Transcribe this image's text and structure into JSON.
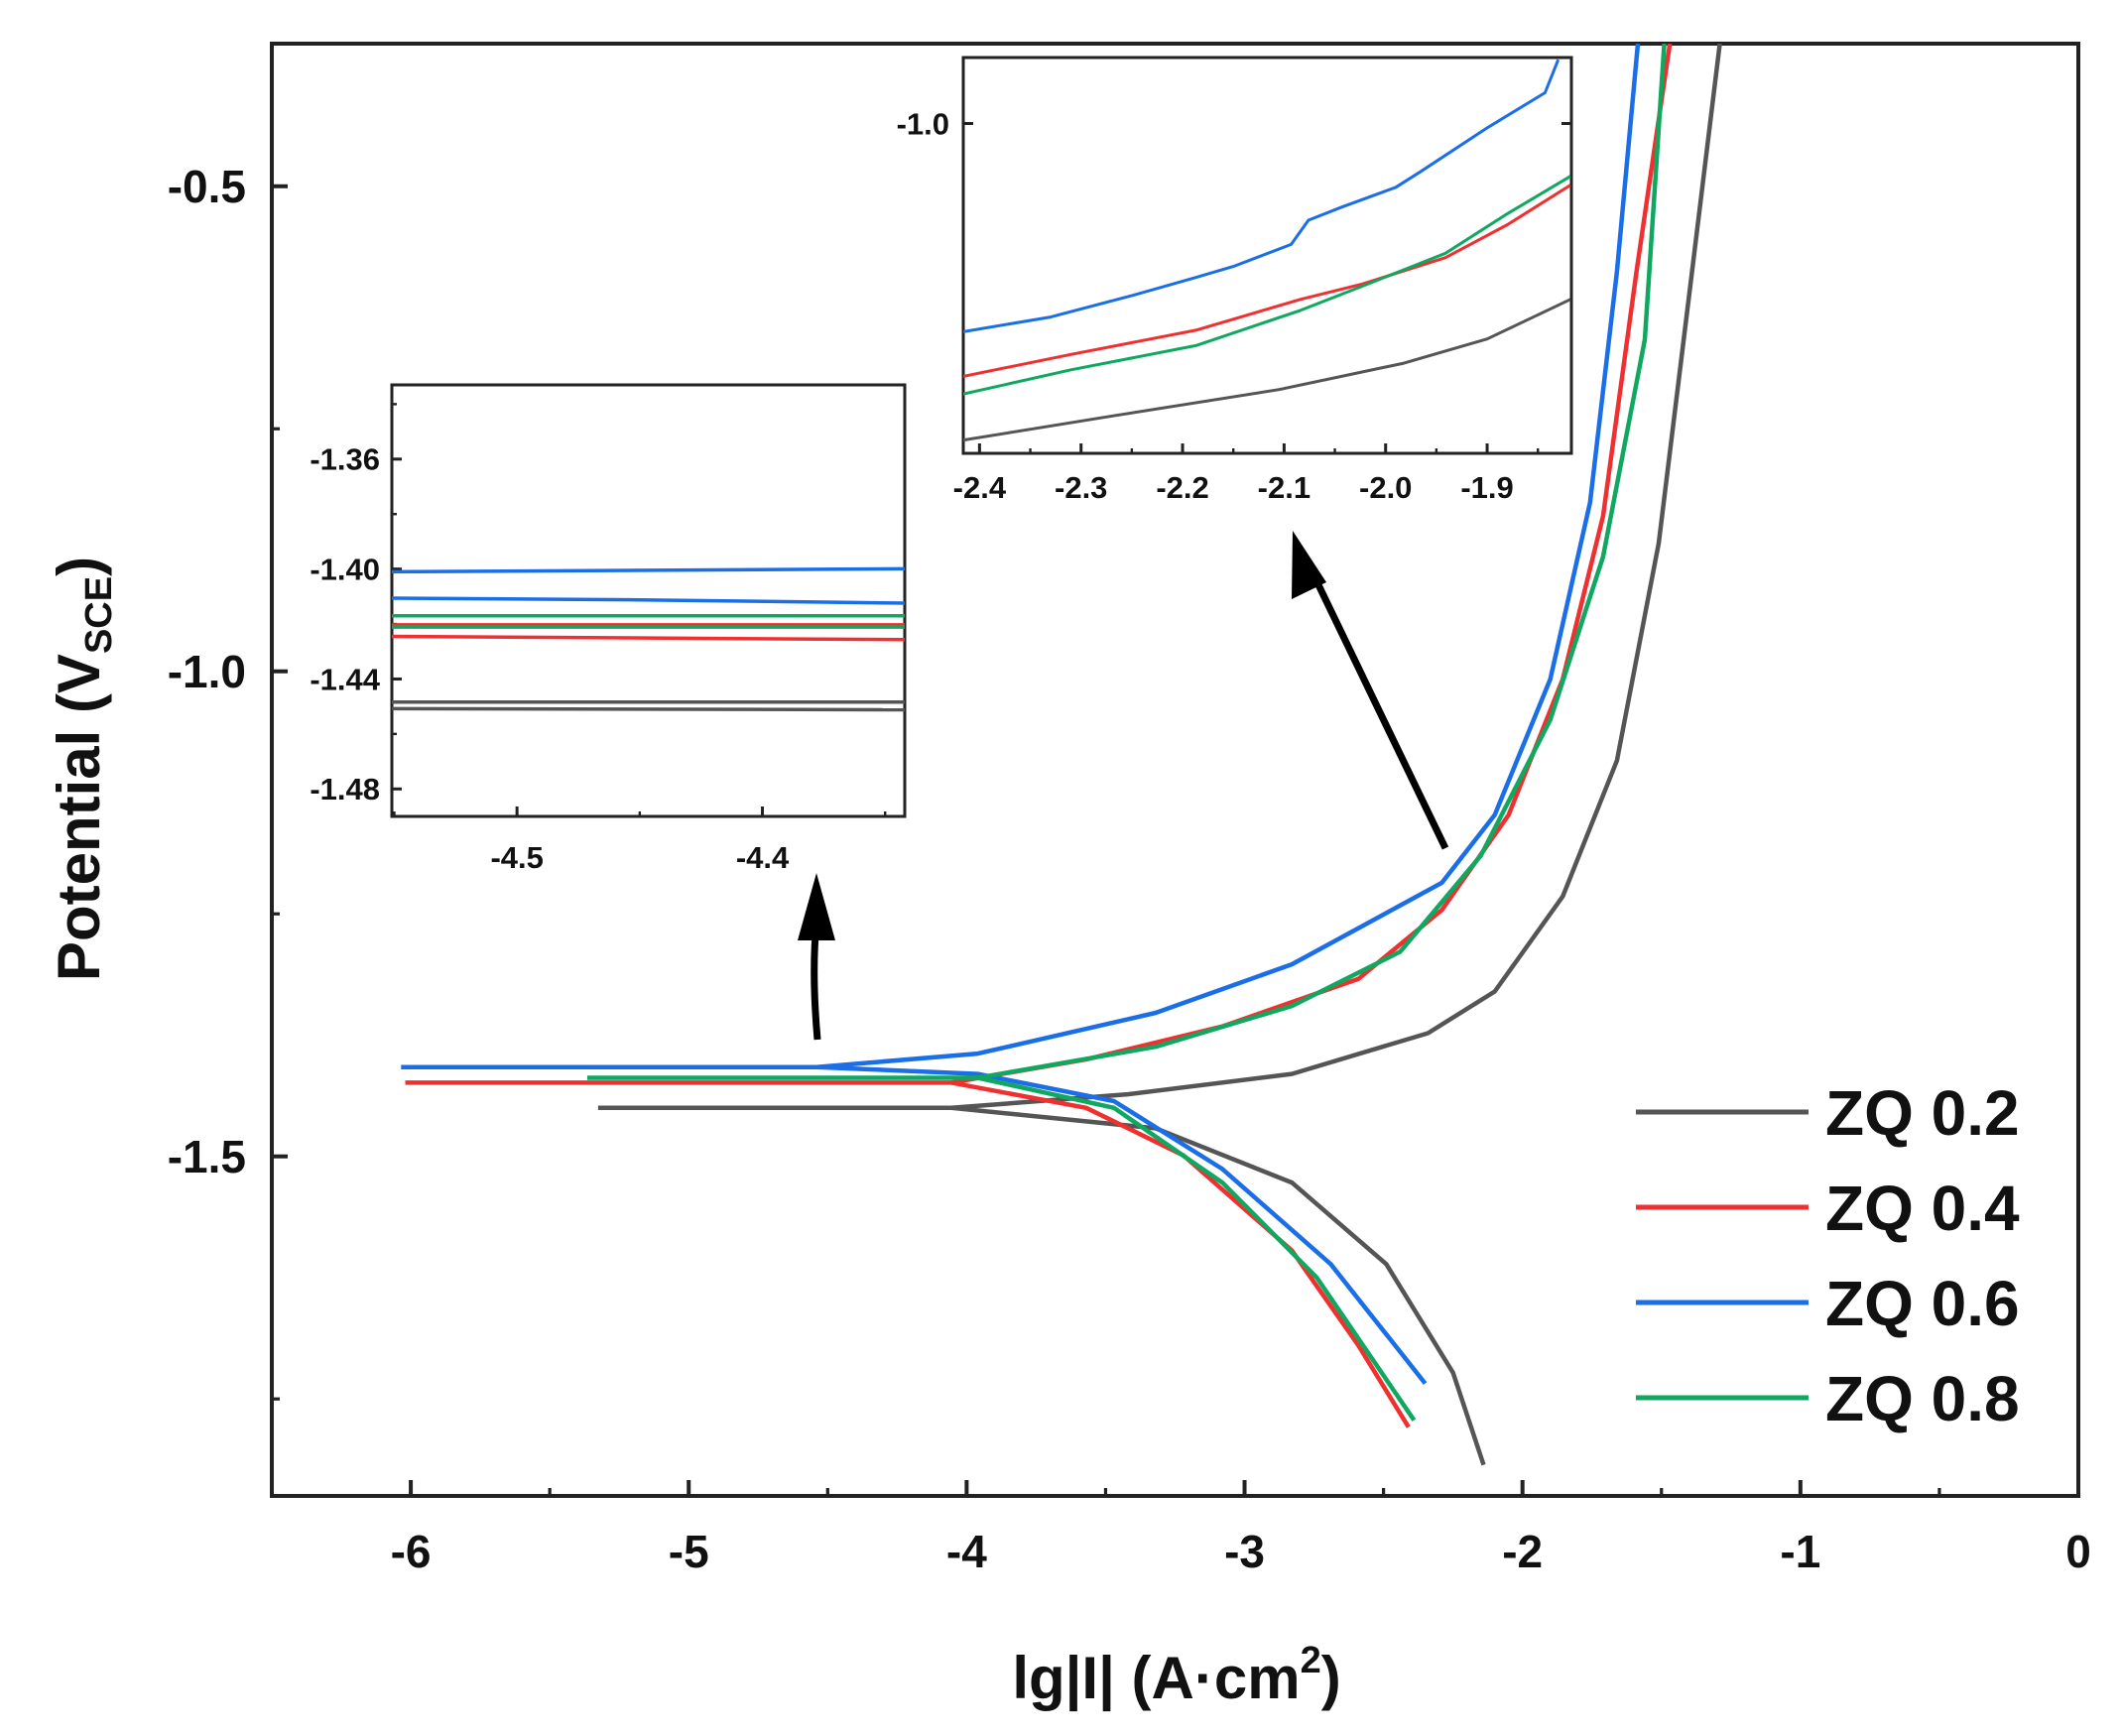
{
  "chart_data": [
    {
      "id": "main",
      "type": "line",
      "xlabel": {
        "main": "lg|I| (A·cm",
        "sup": "2",
        "tail": ")"
      },
      "ylabel": {
        "main": "Potential (V",
        "sub": "SCE",
        "tail": ")"
      },
      "xlim": [
        -6.5,
        0
      ],
      "ylim": [
        -1.85,
        -0.353
      ],
      "xticks": [
        -6,
        -5,
        -4,
        -3,
        -2,
        -1,
        0
      ],
      "xtick_labels": [
        "-6",
        "-5",
        "-4",
        "-3",
        "-2",
        "-1",
        "0"
      ],
      "yticks": [
        -0.5,
        -1.0,
        -1.5
      ],
      "ytick_labels": [
        "-0.5",
        "-1.0",
        "-1.5"
      ],
      "grid": false,
      "legend_placement": "bottom-right",
      "series": [
        {
          "name": "ZQ 0.2",
          "color": "#555555",
          "anodic": [
            [
              -5.326,
              -1.45
            ],
            [
              -4.055,
              -1.45
            ],
            [
              -3.42,
              -1.436
            ],
            [
              -2.83,
              -1.415
            ],
            [
              -2.34,
              -1.373
            ],
            [
              -2.1,
              -1.33
            ],
            [
              -1.855,
              -1.232
            ],
            [
              -1.66,
              -1.092
            ],
            [
              -1.51,
              -0.868
            ],
            [
              -1.39,
              -0.588
            ],
            [
              -1.29,
              -0.353
            ]
          ],
          "cathodic": [
            [
              -4.055,
              -1.45
            ],
            [
              -3.32,
              -1.471
            ],
            [
              -2.83,
              -1.527
            ],
            [
              -2.49,
              -1.611
            ],
            [
              -2.25,
              -1.723
            ],
            [
              -2.14,
              -1.818
            ]
          ]
        },
        {
          "name": "ZQ 0.4",
          "color": "#f03030",
          "anodic": [
            [
              -6.02,
              -1.424
            ],
            [
              -4.055,
              -1.424
            ],
            [
              -3.57,
              -1.4
            ],
            [
              -3.08,
              -1.366
            ],
            [
              -2.59,
              -1.317
            ],
            [
              -2.29,
              -1.246
            ],
            [
              -2.05,
              -1.148
            ],
            [
              -1.855,
              -1.008
            ],
            [
              -1.71,
              -0.84
            ],
            [
              -1.59,
              -0.588
            ],
            [
              -1.47,
              -0.353
            ]
          ],
          "cathodic": [
            [
              -4.055,
              -1.424
            ],
            [
              -3.57,
              -1.45
            ],
            [
              -3.22,
              -1.499
            ],
            [
              -2.83,
              -1.597
            ],
            [
              -2.59,
              -1.695
            ],
            [
              -2.41,
              -1.779
            ]
          ]
        },
        {
          "name": "ZQ 0.6",
          "color": "#1a6ee8",
          "anodic": [
            [
              -6.035,
              -1.408
            ],
            [
              -4.54,
              -1.408
            ],
            [
              -3.96,
              -1.394
            ],
            [
              -3.32,
              -1.352
            ],
            [
              -2.83,
              -1.302
            ],
            [
              -2.29,
              -1.218
            ],
            [
              -2.1,
              -1.148
            ],
            [
              -1.9,
              -1.008
            ],
            [
              -1.757,
              -0.826
            ],
            [
              -1.66,
              -0.588
            ],
            [
              -1.585,
              -0.353
            ]
          ],
          "cathodic": [
            [
              -4.54,
              -1.408
            ],
            [
              -3.96,
              -1.415
            ],
            [
              -3.47,
              -1.443
            ],
            [
              -3.08,
              -1.513
            ],
            [
              -2.69,
              -1.611
            ],
            [
              -2.35,
              -1.734
            ]
          ]
        },
        {
          "name": "ZQ 0.8",
          "color": "#10a860",
          "anodic": [
            [
              -5.365,
              -1.419
            ],
            [
              -3.96,
              -1.419
            ],
            [
              -3.32,
              -1.387
            ],
            [
              -2.83,
              -1.345
            ],
            [
              -2.44,
              -1.289
            ],
            [
              -2.15,
              -1.19
            ],
            [
              -1.9,
              -1.05
            ],
            [
              -1.71,
              -0.882
            ],
            [
              -1.56,
              -0.658
            ],
            [
              -1.49,
              -0.353
            ]
          ],
          "cathodic": [
            [
              -3.96,
              -1.419
            ],
            [
              -3.47,
              -1.45
            ],
            [
              -3.08,
              -1.527
            ],
            [
              -2.74,
              -1.625
            ],
            [
              -2.39,
              -1.772
            ]
          ]
        }
      ]
    },
    {
      "id": "inset-corrosion-potential",
      "type": "line",
      "xlim": [
        -4.551,
        -4.342
      ],
      "ylim": [
        -1.49,
        -1.333
      ],
      "xticks": [
        -4.5,
        -4.4
      ],
      "xtick_labels": [
        "-4.5",
        "-4.4"
      ],
      "yticks": [
        -1.36,
        -1.4,
        -1.44,
        -1.48
      ],
      "ytick_labels": [
        "-1.36",
        "-1.40",
        "-1.44",
        "-1.48"
      ],
      "series": [
        {
          "name": "ZQ 0.2",
          "color": "#555555",
          "lines": [
            [
              [
                -4.551,
                -1.4484
              ],
              [
                -4.342,
                -1.4484
              ]
            ],
            [
              [
                -4.551,
                -1.4508
              ],
              [
                -4.342,
                -1.4512
              ]
            ]
          ]
        },
        {
          "name": "ZQ 0.4",
          "color": "#f03030",
          "lines": [
            [
              [
                -4.551,
                -1.4203
              ],
              [
                -4.342,
                -1.4203
              ]
            ],
            [
              [
                -4.551,
                -1.4245
              ],
              [
                -4.342,
                -1.4257
              ]
            ]
          ]
        },
        {
          "name": "ZQ 0.6",
          "color": "#1a6ee8",
          "lines": [
            [
              [
                -4.551,
                -1.401
              ],
              [
                -4.342,
                -1.3999
              ]
            ],
            [
              [
                -4.551,
                -1.4106
              ],
              [
                -4.45,
                -1.4112
              ],
              [
                -4.342,
                -1.4124
              ]
            ]
          ]
        },
        {
          "name": "ZQ 0.8",
          "color": "#10a860",
          "lines": [
            [
              [
                -4.551,
                -1.417
              ],
              [
                -4.342,
                -1.417
              ]
            ],
            [
              [
                -4.551,
                -1.4211
              ],
              [
                -4.342,
                -1.4211
              ]
            ]
          ]
        }
      ]
    },
    {
      "id": "inset-anodic",
      "type": "line",
      "xlim": [
        -2.416,
        -1.817
      ],
      "ylim": [
        -1.15,
        -0.97
      ],
      "xticks": [
        -2.4,
        -2.3,
        -2.2,
        -2.1,
        -2.0,
        -1.9
      ],
      "xtick_labels": [
        "-2.4",
        "-2.3",
        "-2.2",
        "-2.1",
        "-2.0",
        "-1.9"
      ],
      "yticks": [
        -1.0
      ],
      "ytick_labels": [
        "-1.0"
      ],
      "series": [
        {
          "name": "ZQ 0.2",
          "color": "#555555",
          "lines": [
            [
              [
                -2.416,
                -1.144
              ],
              [
                -2.269,
                -1.133
              ],
              [
                -2.105,
                -1.121
              ],
              [
                -1.982,
                -1.109
              ],
              [
                -1.9,
                -1.098
              ],
              [
                -1.818,
                -1.08
              ]
            ]
          ]
        },
        {
          "name": "ZQ 0.4",
          "color": "#f03030",
          "lines": [
            [
              [
                -2.416,
                -1.115
              ],
              [
                -2.31,
                -1.105
              ],
              [
                -2.187,
                -1.094
              ],
              [
                -2.084,
                -1.08
              ],
              [
                -2.023,
                -1.073
              ],
              [
                -1.941,
                -1.061
              ],
              [
                -1.88,
                -1.046
              ],
              [
                -1.818,
                -1.028
              ]
            ]
          ]
        },
        {
          "name": "ZQ 0.6",
          "color": "#1a6ee8",
          "lines": [
            [
              [
                -2.416,
                -1.0947
              ],
              [
                -2.33,
                -1.088
              ],
              [
                -2.248,
                -1.078
              ],
              [
                -2.187,
                -1.07
              ],
              [
                -2.15,
                -1.065
              ],
              [
                -2.093,
                -1.055
              ],
              [
                -2.076,
                -1.044
              ],
              [
                -2.043,
                -1.038
              ],
              [
                -1.99,
                -1.029
              ],
              [
                -1.966,
                -1.022
              ],
              [
                -1.9,
                -1.002
              ],
              [
                -1.843,
                -0.986
              ],
              [
                -1.83,
                -0.971
              ]
            ]
          ]
        },
        {
          "name": "ZQ 0.8",
          "color": "#10a860",
          "lines": [
            [
              [
                -2.416,
                -1.123
              ],
              [
                -2.31,
                -1.112
              ],
              [
                -2.187,
                -1.101
              ],
              [
                -2.084,
                -1.085
              ],
              [
                -2.023,
                -1.074
              ],
              [
                -1.941,
                -1.059
              ],
              [
                -1.88,
                -1.041
              ],
              [
                -1.818,
                -1.024
              ]
            ]
          ]
        }
      ]
    }
  ]
}
